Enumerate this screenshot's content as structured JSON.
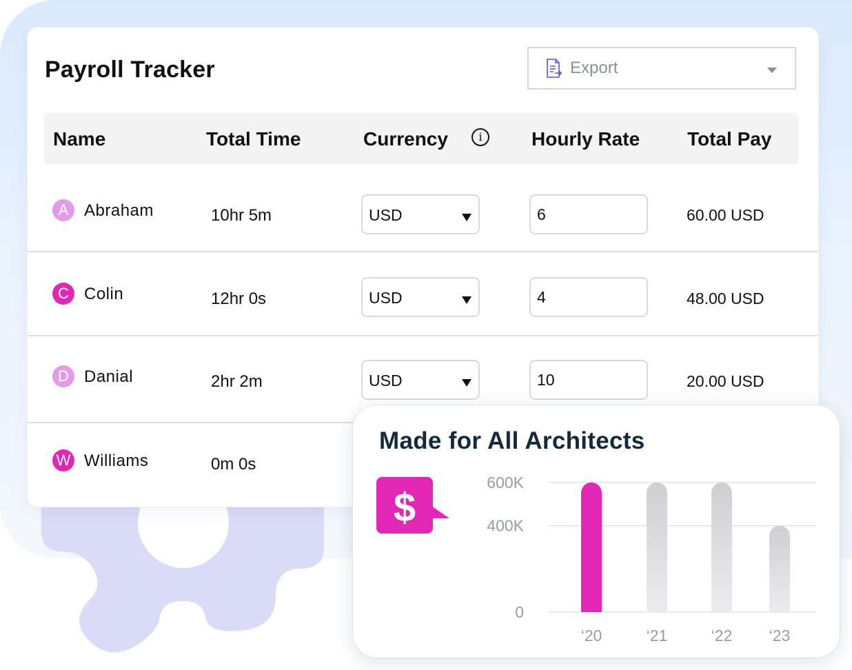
{
  "payroll": {
    "title": "Payroll Tracker",
    "export_label": "Export",
    "columns": [
      "Name",
      "Total Time",
      "Currency",
      "Hourly Rate",
      "Total Pay"
    ],
    "rows": [
      {
        "initial": "A",
        "name": "Abraham",
        "time": "10hr 5m",
        "currency": "USD",
        "rate": "6",
        "pay": "60.00 USD",
        "avatar_color": "#e39ae9"
      },
      {
        "initial": "C",
        "name": "Colin",
        "time": "12hr 0s",
        "currency": "USD",
        "rate": "4",
        "pay": "48.00 USD",
        "avatar_color": "#e426b6"
      },
      {
        "initial": "D",
        "name": "Danial",
        "time": "2hr 2m",
        "currency": "USD",
        "rate": "10",
        "pay": "20.00 USD",
        "avatar_color": "#e39ae9"
      },
      {
        "initial": "W",
        "name": "Williams",
        "time": "0m 0s",
        "avatar_color": "#e426b6"
      }
    ]
  },
  "stat_card": {
    "title": "Made for All Architects",
    "icon": "dollar-icon"
  },
  "colors": {
    "accent": "#e426b6",
    "bar_muted": "#cfcfd2",
    "title_dark": "#122a3e"
  },
  "chart_data": {
    "type": "bar",
    "categories": [
      "‘20",
      "‘21",
      "‘22",
      "‘23"
    ],
    "values": [
      600000,
      600000,
      600000,
      400000
    ],
    "highlighted": "‘20",
    "yticks": [
      0,
      400000,
      600000
    ],
    "ytick_labels": [
      "0",
      "400K",
      "600K"
    ],
    "ylim": [
      0,
      600000
    ],
    "grid": true
  }
}
